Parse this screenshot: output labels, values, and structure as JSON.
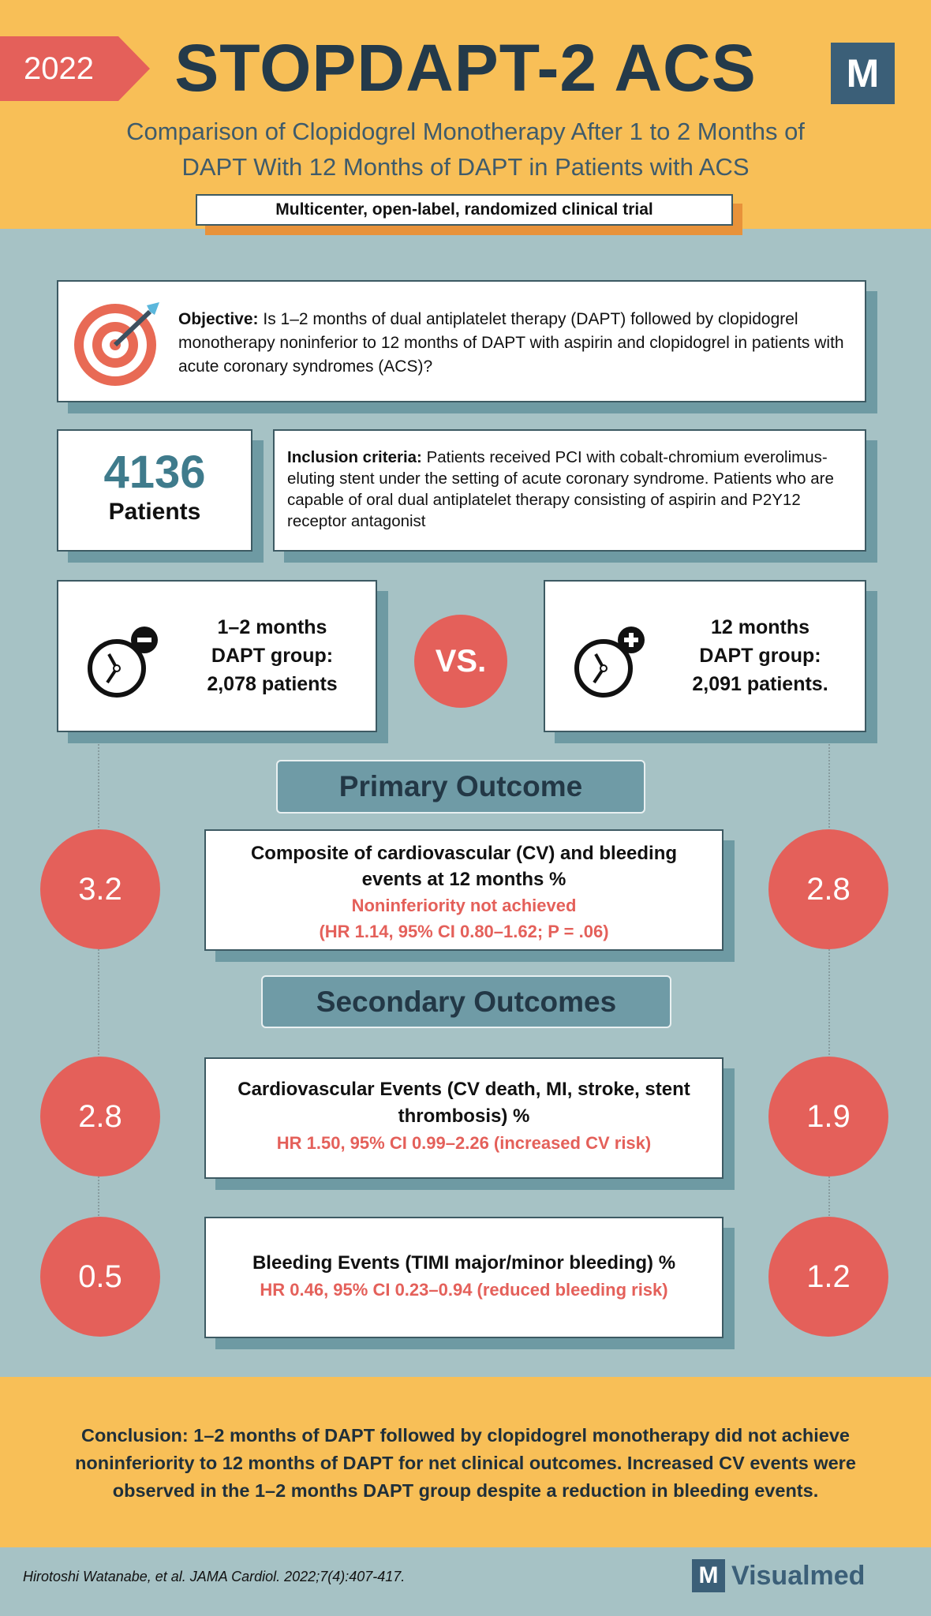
{
  "header": {
    "year": "2022",
    "title": "STOPDAPT-2 ACS",
    "logo_letter": "M",
    "subtitle_line1": "Comparison of Clopidogrel Monotherapy After 1 to 2 Months of",
    "subtitle_line2": "DAPT With 12 Months of DAPT in Patients with ACS",
    "trial_type": "Multicenter, open-label, randomized clinical trial"
  },
  "objective": {
    "label": "Objective:",
    "text": " Is 1–2 months of dual antiplatelet therapy (DAPT) followed by clopidogrel monotherapy noninferior to 12 months of DAPT with aspirin and clopidogrel in patients with acute coronary syndromes (ACS)?"
  },
  "patients": {
    "count": "4136",
    "label": "Patients"
  },
  "inclusion": {
    "label": "Inclusion criteria:",
    "text": " Patients received PCI with cobalt-chromium everolimus-eluting stent under the setting of acute coronary syndrome. Patients who are capable of oral dual antiplatelet therapy consisting of aspirin and P2Y12 receptor antagonist"
  },
  "groups": {
    "left": {
      "line1": "1–2 months",
      "line2": "DAPT group:",
      "line3": "2,078 patients"
    },
    "vs": "VS.",
    "right": {
      "line1": "12 months",
      "line2": "DAPT group:",
      "line3": "2,091 patients."
    }
  },
  "primary": {
    "heading": "Primary Outcome",
    "title": "Composite of cardiovascular (CV) and bleeding events at 12 months %",
    "result": "Noninferiority not achieved",
    "stats": "(HR 1.14, 95% CI 0.80–1.62; P = .06)",
    "left_value": "3.2",
    "right_value": "2.8"
  },
  "secondary": {
    "heading": "Secondary Outcomes",
    "cv": {
      "title": "Cardiovascular Events (CV death, MI, stroke, stent thrombosis) %",
      "stats": "HR 1.50, 95% CI 0.99–2.26 (increased CV risk)",
      "left_value": "2.8",
      "right_value": "1.9"
    },
    "bleeding": {
      "title": "Bleeding Events (TIMI major/minor bleeding) %",
      "stats": "HR 0.46, 95% CI 0.23–0.94 (reduced bleeding risk)",
      "left_value": "0.5",
      "right_value": "1.2"
    }
  },
  "conclusion": {
    "label": "Conclusion:",
    "text": " 1–2 months of DAPT followed by clopidogrel monotherapy did not achieve noninferiority to 12 months of DAPT for net clinical outcomes. Increased CV events were observed in the 1–2 months DAPT group despite a reduction in bleeding events."
  },
  "footer": {
    "citation": "Hirotoshi Watanabe, et al.  JAMA Cardiol. 2022;7(4):407-417.",
    "brand": "Visualmed",
    "brand_letter": "M"
  },
  "colors": {
    "yellow": "#f8bf57",
    "red": "#e4605a",
    "navy": "#243a4a",
    "teal_bg": "#a6c2c5"
  }
}
